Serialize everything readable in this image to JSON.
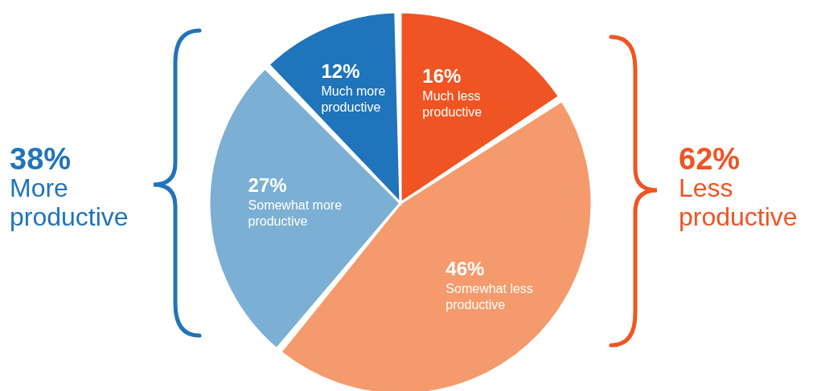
{
  "chart_data": {
    "type": "pie",
    "categories": [
      "Much less productive",
      "Somewhat less productive",
      "Somewhat more productive",
      "Much more productive"
    ],
    "values": [
      16,
      46,
      27,
      12
    ],
    "value_labels": [
      "16%",
      "46%",
      "27%",
      "12%"
    ],
    "colors": [
      "#f05423",
      "#f59a6c",
      "#7bafd4",
      "#1f74bb"
    ],
    "annotations": [
      "38%",
      "More productive",
      "62%",
      "Less productive"
    ],
    "legend": false
  }
}
